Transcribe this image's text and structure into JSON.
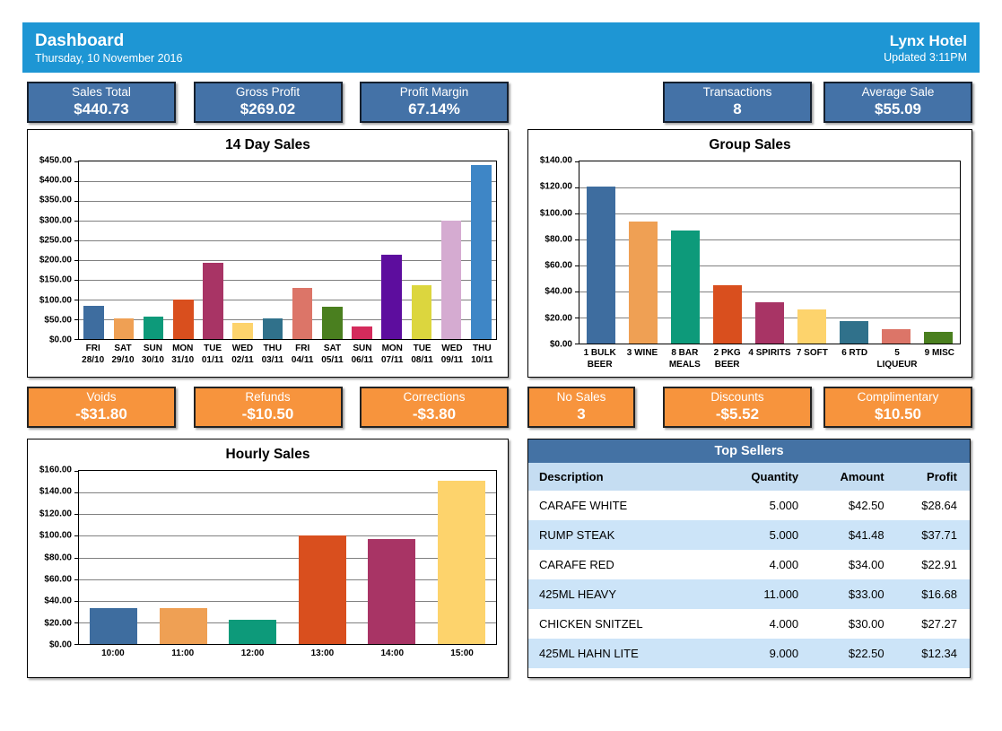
{
  "header": {
    "title": "Dashboard",
    "date": "Thursday, 10 November 2016",
    "store": "Lynx Hotel",
    "updated": "Updated 3:11PM"
  },
  "kpi_tiles": [
    {
      "label": "Sales Total",
      "value": "$440.73"
    },
    {
      "label": "Gross Profit",
      "value": "$269.02"
    },
    {
      "label": "Profit Margin",
      "value": "67.14%"
    },
    {
      "label": "Transactions",
      "value": "8"
    },
    {
      "label": "Average Sale",
      "value": "$55.09"
    }
  ],
  "warning_tiles": [
    {
      "label": "Voids",
      "value": "-$31.80"
    },
    {
      "label": "Refunds",
      "value": "-$10.50"
    },
    {
      "label": "Corrections",
      "value": "-$3.80"
    },
    {
      "label": "No Sales",
      "value": "3"
    },
    {
      "label": "Discounts",
      "value": "-$5.52"
    },
    {
      "label": "Complimentary",
      "value": "$10.50"
    }
  ],
  "colors": {
    "header_blue": "#1e96d4",
    "kpi_blue": "#4472a7",
    "kpi_border": "#16202e",
    "warn_orange": "#f7943d",
    "warn_border": "#222222",
    "table_title_blue": "#4472a4",
    "table_header_row": "#c5ddf2",
    "table_row_alt": "#cce4f8",
    "grid_gray": "#808080"
  },
  "chart_data": [
    {
      "type": "bar",
      "title": "14 Day Sales",
      "categories": [
        [
          "FRI",
          "28/10"
        ],
        [
          "SAT",
          "29/10"
        ],
        [
          "SUN",
          "30/10"
        ],
        [
          "MON",
          "31/10"
        ],
        [
          "TUE",
          "01/11"
        ],
        [
          "WED",
          "02/11"
        ],
        [
          "THU",
          "03/11"
        ],
        [
          "FRI",
          "04/11"
        ],
        [
          "SAT",
          "05/11"
        ],
        [
          "SUN",
          "06/11"
        ],
        [
          "MON",
          "07/11"
        ],
        [
          "TUE",
          "08/11"
        ],
        [
          "WED",
          "09/11"
        ],
        [
          "THU",
          "10/11"
        ]
      ],
      "values": [
        85,
        52,
        56,
        100,
        193,
        41,
        52,
        130,
        81,
        32,
        213,
        137,
        300,
        440
      ],
      "ylim": [
        0,
        450
      ],
      "ystep": 50,
      "grid": true,
      "colors": [
        "#3e6d9f",
        "#efa054",
        "#0d9a7a",
        "#d94f1e",
        "#a83465",
        "#fdd36c",
        "#30718b",
        "#dc7568",
        "#4a7f1f",
        "#d42b5c",
        "#5d0d9e",
        "#dcd63e",
        "#d5abd1",
        "#3e86c6"
      ]
    },
    {
      "type": "bar",
      "title": "Group Sales",
      "categories": [
        [
          "1 BULK",
          "BEER"
        ],
        [
          "3 WINE"
        ],
        [
          "8 BAR",
          "MEALS"
        ],
        [
          "2 PKG",
          "BEER"
        ],
        [
          "4 SPIRITS"
        ],
        [
          "7 SOFT"
        ],
        [
          "6 RTD"
        ],
        [
          "5",
          "LIQUEUR"
        ],
        [
          "9 MISC"
        ]
      ],
      "values": [
        121,
        94,
        87,
        45,
        32,
        26,
        17,
        11,
        9
      ],
      "ylim": [
        0,
        140
      ],
      "ystep": 20,
      "grid": true,
      "colors": [
        "#3e6d9f",
        "#efa054",
        "#0d9a7a",
        "#d94f1e",
        "#a83465",
        "#fdd36c",
        "#30718b",
        "#dc7568",
        "#4a7f1f"
      ]
    },
    {
      "type": "bar",
      "title": "Hourly Sales",
      "categories": [
        [
          "10:00"
        ],
        [
          "11:00"
        ],
        [
          "12:00"
        ],
        [
          "13:00"
        ],
        [
          "14:00"
        ],
        [
          "15:00"
        ]
      ],
      "values": [
        33,
        33,
        22,
        100,
        97,
        151
      ],
      "ylim": [
        0,
        160
      ],
      "ystep": 20,
      "grid": true,
      "colors": [
        "#3e6d9f",
        "#efa054",
        "#0d9a7a",
        "#d94f1e",
        "#a83465",
        "#fdd36c"
      ]
    }
  ],
  "top_sellers": {
    "title": "Top Sellers",
    "columns": [
      "Description",
      "Quantity",
      "Amount",
      "Profit"
    ],
    "rows": [
      {
        "description": "CARAFE WHITE",
        "quantity": "5.000",
        "amount": "$42.50",
        "profit": "$28.64"
      },
      {
        "description": "RUMP STEAK",
        "quantity": "5.000",
        "amount": "$41.48",
        "profit": "$37.71"
      },
      {
        "description": "CARAFE RED",
        "quantity": "4.000",
        "amount": "$34.00",
        "profit": "$22.91"
      },
      {
        "description": "425ML HEAVY",
        "quantity": "11.000",
        "amount": "$33.00",
        "profit": "$16.68"
      },
      {
        "description": "CHICKEN SNITZEL",
        "quantity": "4.000",
        "amount": "$30.00",
        "profit": "$27.27"
      },
      {
        "description": "425ML HAHN LITE",
        "quantity": "9.000",
        "amount": "$22.50",
        "profit": "$12.34"
      }
    ]
  }
}
